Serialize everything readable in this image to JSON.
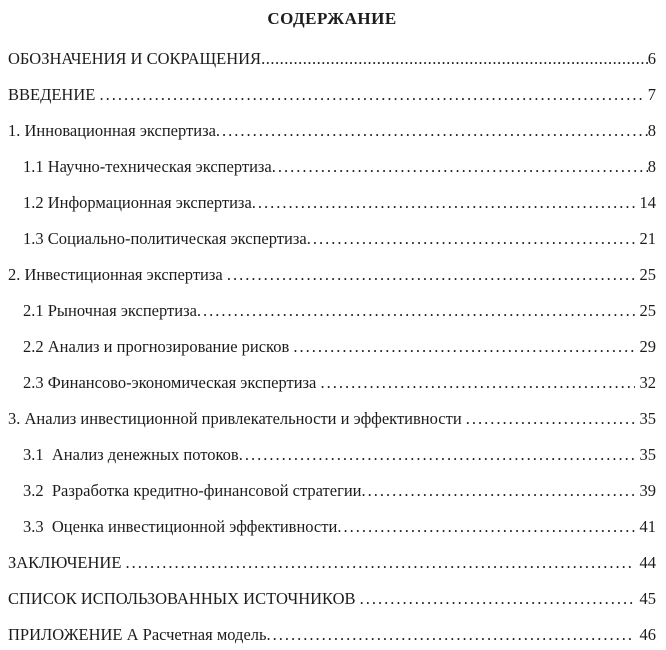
{
  "document": {
    "title": "СОДЕРЖАНИЕ",
    "colors": {
      "text": "#1c1c1c",
      "background": "#ffffff"
    },
    "entries": [
      {
        "label": "ОБОЗНАЧЕНИЯ И СОКРАЩЕНИЯ",
        "page": "6",
        "level": 0,
        "leader": "ellipsis"
      },
      {
        "label": "ВВЕДЕНИЕ ",
        "page": " 7",
        "level": 0,
        "leader": "dots"
      },
      {
        "label": "1. Инновационная экспертиза",
        "page": "8",
        "level": 0,
        "leader": "dots"
      },
      {
        "label": "1.1 Научно-техническая экспертиза",
        "page": "8",
        "level": 1,
        "leader": "dots"
      },
      {
        "label": "1.2 Информационная экспертиза",
        "page": " 14",
        "level": 1,
        "leader": "dots"
      },
      {
        "label": "1.3 Социально-политическая экспертиза",
        "page": " 21",
        "level": 1,
        "leader": "dots"
      },
      {
        "label": "2. Инвестиционная экспертиза ",
        "page": " 25",
        "level": 0,
        "leader": "dots"
      },
      {
        "label": "2.1 Рыночная экспертиза",
        "page": " 25",
        "level": 1,
        "leader": "dots"
      },
      {
        "label": "2.2 Анализ и прогнозирование рисков ",
        "page": " 29",
        "level": 1,
        "leader": "dots"
      },
      {
        "label": "2.3 Финансово-экономическая экспертиза ",
        "page": " 32",
        "level": 1,
        "leader": "dots"
      },
      {
        "label": "3. Анализ инвестиционной привлекательности и эффективности ",
        "page": " 35",
        "level": 0,
        "leader": "dots"
      },
      {
        "label": "3.1  Анализ денежных потоков",
        "page": " 35",
        "level": 1,
        "leader": "dots"
      },
      {
        "label": "3.2  Разработка кредитно-финансовой стратегии",
        "page": " 39",
        "level": 1,
        "leader": "dots"
      },
      {
        "label": "3.3  Оценка инвестиционной эффективности",
        "page": " 41",
        "level": 1,
        "leader": "dots"
      },
      {
        "label": "ЗАКЛЮЧЕНИЕ ",
        "page": " 44",
        "level": 0,
        "leader": "dots"
      },
      {
        "label": "СПИСОК ИСПОЛЬЗОВАННЫХ ИСТОЧНИКОВ ",
        "page": " 45",
        "level": 0,
        "leader": "dots"
      },
      {
        "label": "ПРИЛОЖЕНИЕ А Расчетная модель",
        "page": " 46",
        "level": 0,
        "leader": "dots"
      }
    ]
  }
}
